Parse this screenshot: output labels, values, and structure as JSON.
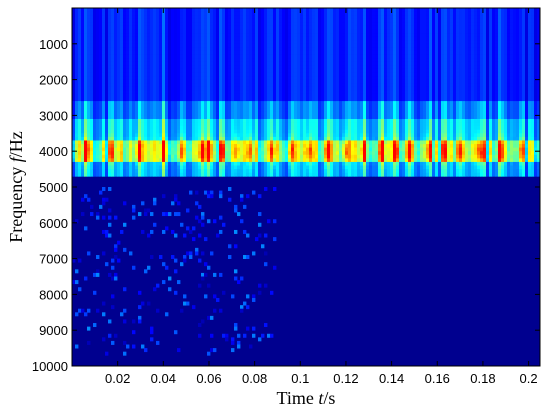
{
  "chart_data": {
    "type": "heatmap",
    "title": "",
    "xlabel_parts": [
      "Time ",
      "t",
      "/s"
    ],
    "ylabel_parts": [
      "Frequency ",
      "f",
      "/Hz"
    ],
    "x_range": [
      0,
      0.205
    ],
    "y_range": [
      0,
      10000
    ],
    "y_reversed": true,
    "x_ticks": [
      0.02,
      0.04,
      0.06,
      0.08,
      0.1,
      0.12,
      0.14,
      0.16,
      0.18,
      0.2
    ],
    "x_tick_labels": [
      "0.02",
      "0.04",
      "0.06",
      "0.08",
      "0.1",
      "0.12",
      "0.14",
      "0.16",
      "0.18",
      "0.2"
    ],
    "y_ticks": [
      1000,
      2000,
      3000,
      4000,
      5000,
      6000,
      7000,
      8000,
      9000,
      10000
    ],
    "y_tick_labels": [
      "1000",
      "2000",
      "3000",
      "4000",
      "5000",
      "6000",
      "7000",
      "8000",
      "9000",
      "10000"
    ],
    "colormap": [
      "#00008f",
      "#0000ff",
      "#0080ff",
      "#00ffff",
      "#80ff80",
      "#ffff00",
      "#ff8000",
      "#ff0000"
    ],
    "background_color": "#00008f",
    "energy_bands": [
      {
        "f_min": 0,
        "f_max": 2600,
        "level": 0.16,
        "note": "low energy, faint vertical streaks"
      },
      {
        "f_min": 2600,
        "f_max": 3100,
        "level": 0.24
      },
      {
        "f_min": 3100,
        "f_max": 3700,
        "level": 0.34
      },
      {
        "f_min": 3700,
        "f_max": 4300,
        "level": 0.55,
        "note": "dominant band, peak about 4000 Hz"
      },
      {
        "f_min": 4300,
        "f_max": 4700,
        "level": 0.3
      },
      {
        "f_min": 4700,
        "f_max": 10000,
        "level": 0.04
      }
    ],
    "hf_noise_region": {
      "t_max": 0.09,
      "f_min": 5000,
      "f_max": 9700,
      "level": 0.3
    },
    "bright_times": [
      0.006,
      0.017,
      0.029,
      0.04,
      0.048,
      0.057,
      0.06,
      0.066,
      0.072,
      0.078,
      0.088,
      0.096,
      0.104,
      0.112,
      0.12,
      0.128,
      0.136,
      0.142,
      0.148,
      0.156,
      0.163,
      0.17,
      0.178,
      0.18,
      0.188,
      0.197
    ]
  }
}
